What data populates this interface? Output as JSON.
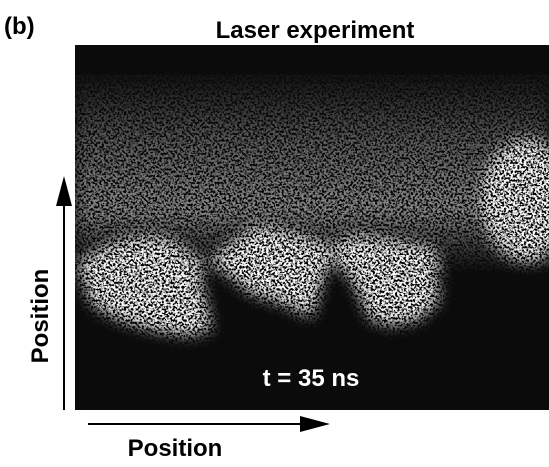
{
  "panel_label": "(b)",
  "title": "Laser experiment",
  "annotation": "t = 35 ns",
  "x_axis_label": "Position",
  "y_axis_label": "Position"
}
